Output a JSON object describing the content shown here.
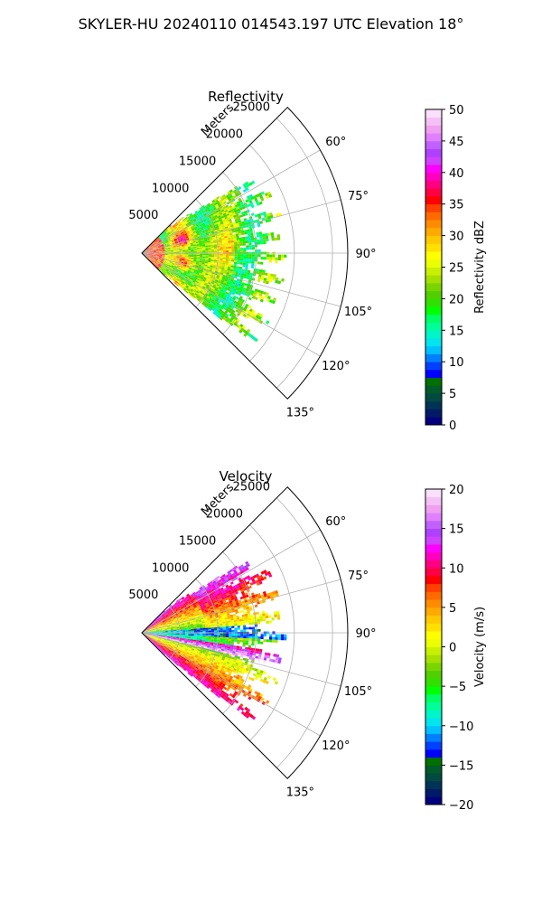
{
  "suptitle": "SKYLER-HU  20240110  014543.197 UTC Elevation 18°",
  "chart_data": [
    {
      "type": "heatmap",
      "projection": "polar sector",
      "title": "Reflectivity",
      "radial_label": "Meters",
      "radial_ticks": [
        "5000",
        "10000",
        "15000",
        "20000",
        "25000"
      ],
      "radial_range": [
        0,
        27000
      ],
      "angle_ticks": [
        "60°",
        "75°",
        "90°",
        "105°",
        "120°",
        "135°"
      ],
      "angle_range_deg": [
        45,
        135
      ],
      "data_extent_m": 19000,
      "grid": true,
      "colorbar": {
        "label": "Reflectivity dBZ",
        "ticks": [
          "0",
          "5",
          "10",
          "15",
          "20",
          "25",
          "30",
          "35",
          "40",
          "45",
          "50"
        ],
        "range": [
          0,
          50
        ],
        "colors": [
          "#00007f",
          "#001a66",
          "#003355",
          "#004a40",
          "#005a2a",
          "#007000",
          "#0000ff",
          "#0040ff",
          "#0080ff",
          "#00c0ff",
          "#00e5ee",
          "#00f5c8",
          "#00ff96",
          "#00ff64",
          "#00ff00",
          "#30e000",
          "#50d000",
          "#7ad400",
          "#a6e000",
          "#c8f000",
          "#ecff00",
          "#ffff00",
          "#ffe000",
          "#ffc800",
          "#ffaa00",
          "#ff8c00",
          "#ff6a00",
          "#ff4000",
          "#ff0000",
          "#ff0040",
          "#ff0080",
          "#ff00c0",
          "#ff00ff",
          "#d040ff",
          "#b040ff",
          "#c060ff",
          "#e080ff",
          "#f0a0f0",
          "#f5c0f5",
          "#fae0fa"
        ]
      }
    },
    {
      "type": "heatmap",
      "projection": "polar sector",
      "title": "Velocity",
      "radial_label": "Meters",
      "radial_ticks": [
        "5000",
        "10000",
        "15000",
        "20000",
        "25000"
      ],
      "radial_range": [
        0,
        27000
      ],
      "angle_ticks": [
        "60°",
        "75°",
        "90°",
        "105°",
        "120°",
        "135°"
      ],
      "angle_range_deg": [
        45,
        135
      ],
      "data_extent_m": 19000,
      "grid": true,
      "colorbar": {
        "label": "Velocity (m/s)",
        "ticks": [
          "−20",
          "−15",
          "−10",
          "−5",
          "0",
          "5",
          "10",
          "15",
          "20"
        ],
        "range": [
          -20,
          20
        ],
        "colors": [
          "#00007f",
          "#001a66",
          "#003355",
          "#004a40",
          "#005a2a",
          "#007000",
          "#0000ff",
          "#0040ff",
          "#0080ff",
          "#00c0ff",
          "#00e5ee",
          "#00f5c8",
          "#00ff96",
          "#00ff64",
          "#00ff00",
          "#30e000",
          "#50d000",
          "#7ad400",
          "#a6e000",
          "#c8f000",
          "#ecff00",
          "#ffff00",
          "#ffe000",
          "#ffc800",
          "#ffaa00",
          "#ff8c00",
          "#ff6a00",
          "#ff4000",
          "#ff0000",
          "#ff0040",
          "#ff0080",
          "#ff00c0",
          "#ff00ff",
          "#d040ff",
          "#b040ff",
          "#c060ff",
          "#e080ff",
          "#f0a0f0",
          "#f5c0f5",
          "#fae0fa"
        ]
      }
    }
  ]
}
